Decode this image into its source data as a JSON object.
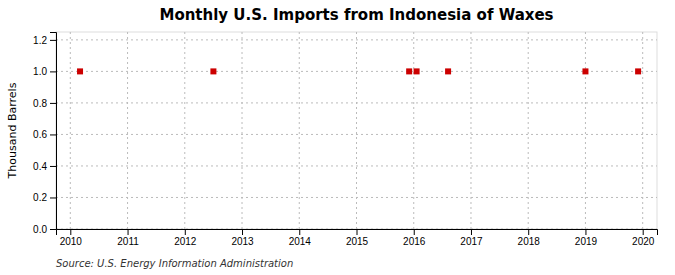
{
  "chart_data": {
    "type": "scatter",
    "title": "Monthly U.S. Imports from Indonesia of Waxes",
    "y_label": "Thousand Barrels",
    "annotations": [
      "Source: U.S. Energy Information Administration"
    ],
    "x": [
      2010.17,
      2012.5,
      2015.92,
      2016.05,
      2016.6,
      2019.0,
      2019.92
    ],
    "values": [
      1.0,
      1.0,
      1.0,
      1.0,
      1.0,
      1.0,
      1.0
    ],
    "color": "#cc0000",
    "marker": "square",
    "xlim": [
      2009.75,
      2020.25
    ],
    "ylim": [
      0.0,
      1.25
    ],
    "xticks": [
      2010,
      2011,
      2012,
      2013,
      2014,
      2015,
      2016,
      2017,
      2018,
      2019,
      2020
    ],
    "yticks": [
      {
        "value": 0.0,
        "label": "0.0"
      },
      0.2,
      0.4,
      0.6,
      0.8,
      {
        "value": 1.0,
        "label": "1.0"
      },
      1.2
    ],
    "grid": true
  }
}
